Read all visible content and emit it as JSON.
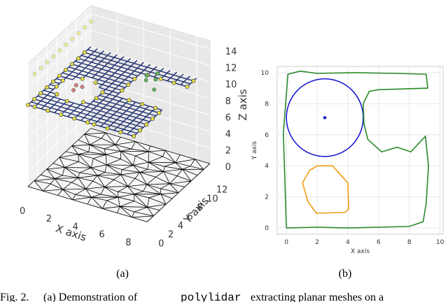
{
  "chart_data": [
    {
      "type": "scatter3d",
      "label": "(a)",
      "xlabel": "X axis",
      "ylabel": "Y axis",
      "zlabel": "Z axis",
      "xlim": [
        0,
        9
      ],
      "ylim": [
        0,
        13
      ],
      "zlim": [
        0,
        15
      ],
      "xticks": [
        0,
        2,
        4,
        6,
        8
      ],
      "yticks": [
        0,
        2,
        4,
        6,
        8,
        10,
        12
      ],
      "zticks": [
        0,
        2,
        4,
        6,
        8,
        10,
        12,
        14
      ]
    },
    {
      "type": "line",
      "label": "(b)",
      "xlabel": "X axis",
      "ylabel": "Y axis",
      "xlim": [
        -0.6,
        10.2
      ],
      "ylim": [
        -0.4,
        10.4
      ],
      "xticks": [
        0,
        2,
        4,
        6,
        8,
        10
      ],
      "yticks": [
        0,
        2,
        4,
        6,
        8,
        10
      ],
      "grid": true,
      "series": [
        {
          "color": "#2a8a2a",
          "x": [
            0,
            2.0,
            4.0,
            6.0,
            8.0,
            8.9,
            9.1,
            9.25,
            9.05,
            8.1,
            7.2,
            6.2,
            5.3,
            5.05,
            5.0,
            5.4,
            6.0,
            9.2,
            9.1,
            7.0,
            4.5,
            2.0,
            0.9,
            0.1,
            -0.2,
            0
          ],
          "y": [
            0,
            0.05,
            0,
            0.05,
            0.1,
            0.4,
            1.6,
            4.0,
            5.9,
            4.9,
            5.2,
            4.9,
            5.7,
            6.7,
            8.0,
            8.8,
            8.9,
            9.0,
            9.9,
            9.95,
            10.0,
            9.95,
            10.1,
            9.9,
            6.1,
            0
          ]
        },
        {
          "color": "#f29b12",
          "x": [
            2.0,
            3.0,
            4.0,
            4.05,
            3.8,
            1.95,
            1.4,
            1.05,
            1.5,
            2.0
          ],
          "y": [
            4.0,
            4.0,
            2.9,
            1.2,
            1.0,
            0.95,
            1.7,
            2.9,
            3.7,
            4.0
          ]
        }
      ],
      "circles": [
        {
          "cx": 2.5,
          "cy": 7.1,
          "r": 2.5,
          "color": "#1010d0"
        }
      ],
      "points": [
        {
          "x": 2.5,
          "y": 7.1,
          "color": "#1010d0"
        }
      ]
    }
  ],
  "caption": {
    "prefix": "Fig. 2.",
    "text": "(a) Demonstration of",
    "code": "polylidar",
    "rest": "extracting planar meshes on a"
  }
}
